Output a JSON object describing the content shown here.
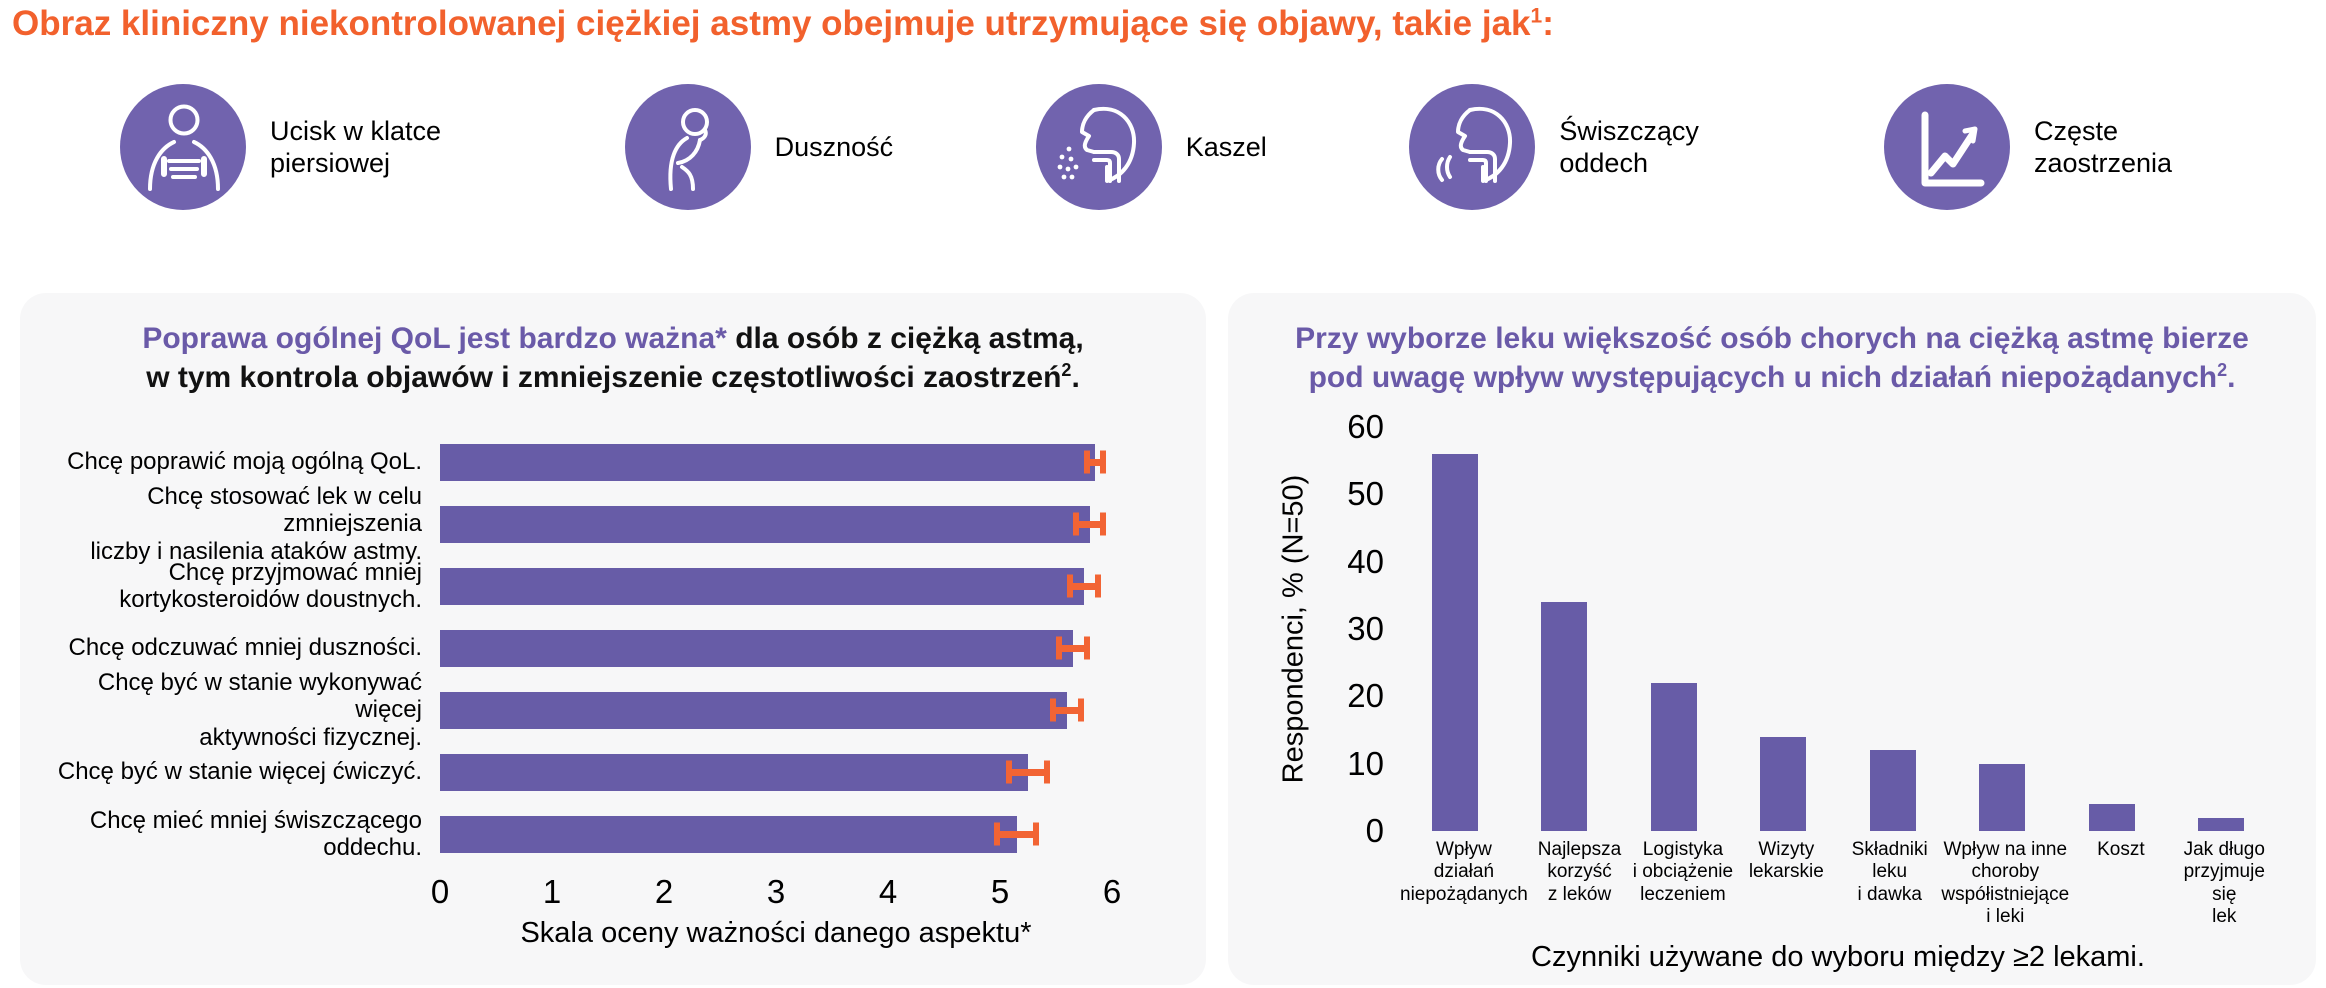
{
  "page": {
    "background": "#FFFFFF",
    "panel_background": "#F7F7F8",
    "accent_orange": "#F26434",
    "accent_purple": "#6A5AA8",
    "bar_purple": "#675CA7",
    "icon_purple": "#7163AE"
  },
  "header": {
    "title_main": "Obraz kliniczny niekontrolowanej ciężkiej astmy obejmuje utrzymujące się objawy, takie jak",
    "title_sup": "1",
    "title_end": ":"
  },
  "symptoms": [
    {
      "icon": "chest-tightness-icon",
      "label": "Ucisk w klatce piersiowej"
    },
    {
      "icon": "breathlessness-icon",
      "label": "Duszność"
    },
    {
      "icon": "cough-icon",
      "label": "Kaszel"
    },
    {
      "icon": "wheezing-icon",
      "label": "Świszczący oddech"
    },
    {
      "icon": "exacerbations-chart-icon",
      "label": "Częste zaostrzenia"
    }
  ],
  "left_panel": {
    "title_highlight": "Poprawa ogólnej QoL jest bardzo ważna*",
    "title_rest_line1": " dla osób z ciężką astmą,",
    "title_line2": "w tym kontrola objawów i zmniejszenie częstotliwości zaostrzeń",
    "title_sup": "2",
    "title_end": "."
  },
  "right_panel": {
    "title_line1": "Przy wyborze leku większość osób chorych na ciężką astmę bierze",
    "title_line2": "pod uwagę wpływ występujących u nich działań niepożądanych",
    "title_sup": "2",
    "title_end": "."
  },
  "chart_data": [
    {
      "type": "bar",
      "orientation": "horizontal",
      "title": "Poprawa ogólnej QoL jest bardzo ważna* dla osób z ciężką astmą, w tym kontrola objawów i zmniejszenie częstotliwości zaostrzeń2.",
      "categories": [
        [
          "Chcę poprawić moją ogólną QoL."
        ],
        [
          "Chcę stosować lek w celu zmniejszenia",
          "liczby i nasilenia ataków astmy."
        ],
        [
          "Chcę przyjmować mniej",
          "kortykosteroidów doustnych."
        ],
        [
          "Chcę odczuwać mniej duszności."
        ],
        [
          "Chcę być w stanie wykonywać więcej",
          "aktywności fizycznej."
        ],
        [
          "Chcę być w stanie więcej ćwiczyć."
        ],
        [
          "Chcę mieć mniej świszczącego oddechu."
        ]
      ],
      "values": [
        5.85,
        5.8,
        5.75,
        5.65,
        5.6,
        5.25,
        5.15
      ],
      "errors": [
        0.1,
        0.15,
        0.15,
        0.15,
        0.15,
        0.2,
        0.2
      ],
      "x_ticks": [
        0,
        1,
        2,
        3,
        4,
        5,
        6
      ],
      "xlim": [
        0,
        6
      ],
      "xlabel": "Skala oceny ważności danego aspektu*",
      "ylabel": "",
      "grid": false,
      "bar_color": "#675CA7",
      "error_color": "#F26434"
    },
    {
      "type": "bar",
      "orientation": "vertical",
      "title": "Przy wyborze leku większość osób chorych na ciężką astmę bierze pod uwagę wpływ występujących u nich działań niepożądanych2.",
      "categories": [
        [
          "Wpływ",
          "działań",
          "niepożądanych"
        ],
        [
          "Najlepsza",
          "korzyść",
          "z leków"
        ],
        [
          "Logistyka",
          "i obciążenie",
          "leczeniem"
        ],
        [
          "Wizyty",
          "lekarskie"
        ],
        [
          "Składniki",
          "leku",
          "i dawka"
        ],
        [
          "Wpływ na inne",
          "choroby",
          "współistniejące",
          "i leki"
        ],
        [
          "Koszt"
        ],
        [
          "Jak długo",
          "przyjmuje się",
          "lek"
        ]
      ],
      "values": [
        56,
        34,
        22,
        14,
        12,
        10,
        4,
        2
      ],
      "y_ticks": [
        0,
        10,
        20,
        30,
        40,
        50,
        60
      ],
      "ylim": [
        0,
        60
      ],
      "ylabel": "Respondenci, % (N=50)",
      "xlabel": "Czynniki używane do wyboru między ≥2 lekami.",
      "grid": false,
      "bar_color": "#675CA7"
    }
  ]
}
